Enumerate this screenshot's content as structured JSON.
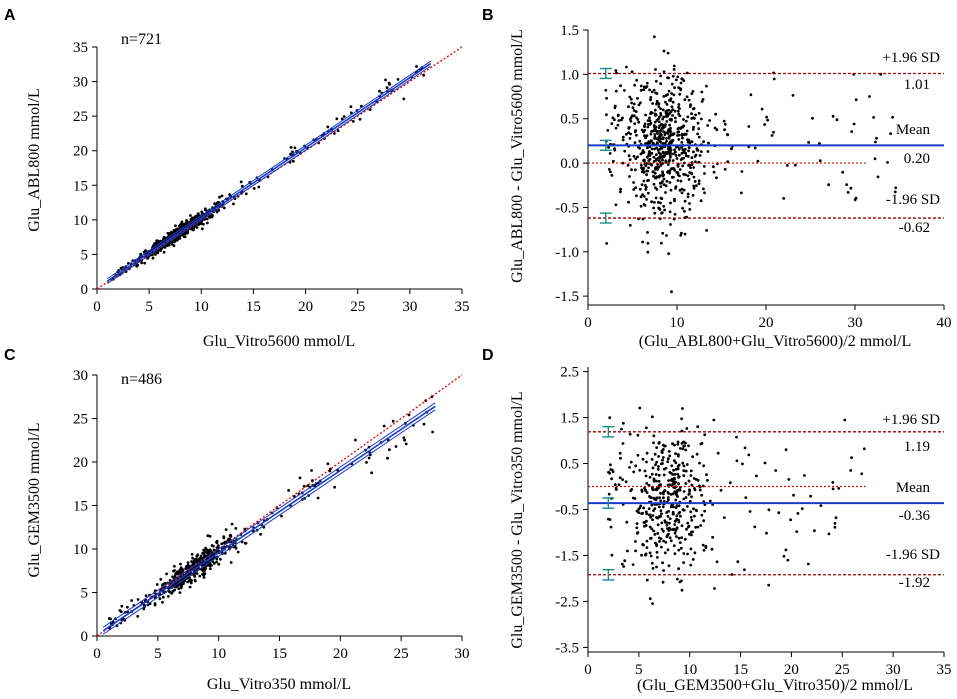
{
  "figure": {
    "colors": {
      "points": "#000000",
      "identity_line": "#e00000",
      "regression_line": "#1a3cc8",
      "ci_line": "#1a3cc8",
      "mean_line": "#1a3cc8",
      "loa_line": "#9a0000",
      "zero_line": "#e00000",
      "error_bar": "#1f8a8a"
    }
  },
  "chart_data": [
    {
      "panel": "A",
      "type": "scatter",
      "annotation": "n=721",
      "xlabel": "Glu_Vitro5600 mmol/L",
      "ylabel": "Glu_ABL800 mmol/L",
      "xlim": [
        0,
        35
      ],
      "ylim": [
        0,
        35
      ],
      "xticks": [
        "0",
        "5",
        "10",
        "15",
        "20",
        "25",
        "30",
        "35"
      ],
      "yticks": [
        "0",
        "5",
        "10",
        "15",
        "20",
        "25",
        "30",
        "35"
      ],
      "identity_line": {
        "x": [
          0,
          35
        ],
        "y": [
          0,
          35
        ]
      },
      "regression": {
        "x": [
          1,
          32
        ],
        "y": [
          1.15,
          32.6
        ]
      },
      "ci_band": 0.35,
      "points": {
        "n": 721,
        "x_range": [
          1.5,
          32
        ],
        "cluster_x": [
          4.5,
          11
        ],
        "slope": 1.02,
        "offset": 0.15,
        "spread": 0.45
      }
    },
    {
      "panel": "B",
      "type": "scatter",
      "xlabel": "(Glu_ABL800+Glu_Vitro5600)/2 mmol/L",
      "ylabel": "Glu_ABL800 - Glu_Vitro5600 mmol/L",
      "xlim": [
        0,
        40
      ],
      "ylim": [
        -1.6,
        1.5
      ],
      "xticks": [
        "0",
        "10",
        "20",
        "30",
        "40"
      ],
      "yticks": [
        "-1.5",
        "-1.0",
        "-0.5",
        "0.0",
        "0.5",
        "1.0",
        "1.5"
      ],
      "mean": 0.2,
      "upper_loa": 1.01,
      "lower_loa": -0.62,
      "labels": {
        "upper_sd": "+1.96 SD",
        "upper_value": "1.01",
        "mean_label": "Mean",
        "mean_value": "0.20",
        "lower_sd": "-1.96 SD",
        "lower_value": "-0.62"
      },
      "points": {
        "n": 721,
        "x_range": [
          2,
          35
        ],
        "cluster_x": [
          5,
          12
        ],
        "center": 0.2,
        "spread": 0.42
      }
    },
    {
      "panel": "C",
      "type": "scatter",
      "annotation": "n=486",
      "xlabel": "Glu_Vitro350 mmol/L",
      "ylabel": "Glu_GEM3500 mmol/L",
      "xlim": [
        0,
        30
      ],
      "ylim": [
        0,
        30
      ],
      "xticks": [
        "0",
        "5",
        "10",
        "15",
        "20",
        "25",
        "30"
      ],
      "yticks": [
        "0",
        "5",
        "10",
        "15",
        "20",
        "25",
        "30"
      ],
      "identity_line": {
        "x": [
          0,
          30
        ],
        "y": [
          0,
          30
        ]
      },
      "regression": {
        "x": [
          0.5,
          27.8
        ],
        "y": [
          0.6,
          26.4
        ]
      },
      "ci_band": 0.4,
      "points": {
        "n": 486,
        "x_range": [
          1,
          27.8
        ],
        "cluster_x": [
          5,
          11
        ],
        "slope": 0.955,
        "offset": 0.1,
        "spread": 0.75
      }
    },
    {
      "panel": "D",
      "type": "scatter",
      "xlabel": "(Glu_GEM3500+Glu_Vitro350)/2 mmol/L",
      "ylabel": "Glu_GEM3500 - Glu_Vitro350 mmol/L",
      "xlim": [
        0,
        35
      ],
      "ylim": [
        -3.6,
        2.6
      ],
      "xticks": [
        "0",
        "5",
        "10",
        "15",
        "20",
        "25",
        "30",
        "35"
      ],
      "yticks": [
        "-3.5",
        "-2.5",
        "-1.5",
        "-0.5",
        "0.5",
        "1.5",
        "2.5"
      ],
      "mean": -0.36,
      "upper_loa": 1.19,
      "lower_loa": -1.92,
      "labels": {
        "upper_sd": "+1.96 SD",
        "upper_value": "1.19",
        "mean_label": "Mean",
        "mean_value": "-0.36",
        "lower_sd": "-1.96 SD",
        "lower_value": "-1.92"
      },
      "points": {
        "n": 486,
        "x_range": [
          2,
          28
        ],
        "cluster_x": [
          5,
          11
        ],
        "center": -0.36,
        "spread": 0.8
      }
    }
  ]
}
